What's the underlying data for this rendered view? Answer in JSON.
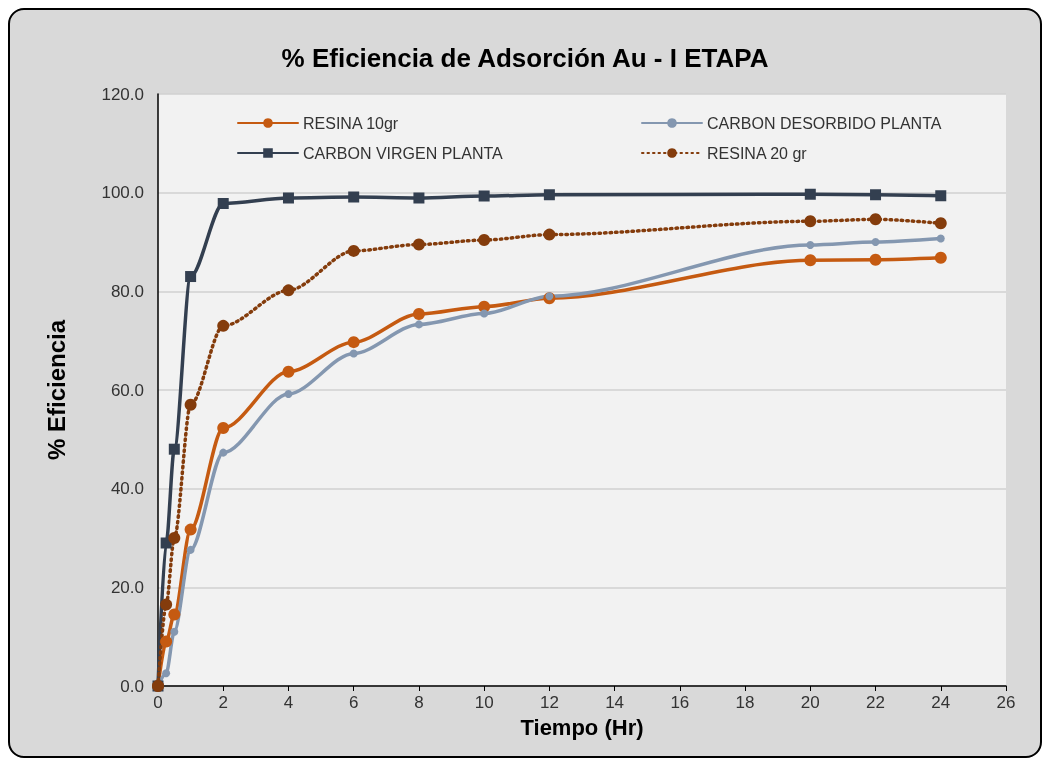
{
  "chart_data": {
    "type": "line",
    "title": "% Eficiencia de Adsorción Au - I ETAPA",
    "xlabel": "Tiempo (Hr)",
    "ylabel": "% Eficiencia",
    "x": [
      0,
      0.25,
      0.5,
      1,
      2,
      4,
      6,
      8,
      10,
      12,
      20,
      22,
      24
    ],
    "series": [
      {
        "name": "RESINA 10gr",
        "color": "#c55a11",
        "marker": "circle",
        "line_style": "solid",
        "values": [
          0,
          9,
          14.5,
          31.7,
          52.3,
          63.7,
          69.7,
          75.4,
          76.9,
          78.6,
          86.3,
          86.4,
          86.8
        ]
      },
      {
        "name": "CARBON DESORBIDO PLANTA",
        "color": "#8497b0",
        "marker": "circle",
        "line_style": "solid",
        "values": [
          0,
          2.6,
          11,
          27.6,
          47.3,
          59.2,
          67.4,
          73.3,
          75.5,
          79,
          89.4,
          90,
          90.7
        ]
      },
      {
        "name": "CARBON VIRGEN PLANTA",
        "color": "#333f50",
        "marker": "square",
        "line_style": "solid",
        "values": [
          0,
          29,
          48,
          83,
          97.8,
          98.9,
          99.1,
          98.9,
          99.3,
          99.6,
          99.7,
          99.6,
          99.4
        ]
      },
      {
        "name": "RESINA 20 gr",
        "color": "#843c0c",
        "marker": "circle",
        "line_style": "dotted",
        "values": [
          0,
          16.5,
          30,
          57,
          73,
          80.2,
          88.2,
          89.5,
          90.4,
          91.5,
          94.2,
          94.6,
          93.8
        ]
      }
    ],
    "xlim": [
      0,
      26
    ],
    "xticks": [
      0,
      2,
      4,
      6,
      8,
      10,
      12,
      14,
      16,
      18,
      20,
      22,
      24,
      26
    ],
    "ylim": [
      0,
      120
    ],
    "yticks": [
      {
        "value": 0,
        "label": "0.0"
      },
      {
        "value": 20,
        "label": "20.0"
      },
      {
        "value": 40,
        "label": "40.0"
      },
      {
        "value": 60,
        "label": "60.0"
      },
      {
        "value": 80,
        "label": "80.0"
      },
      {
        "value": 100,
        "label": "100.0"
      },
      {
        "value": 120,
        "label": "120.0"
      }
    ],
    "grid": "y",
    "legend": "top"
  }
}
